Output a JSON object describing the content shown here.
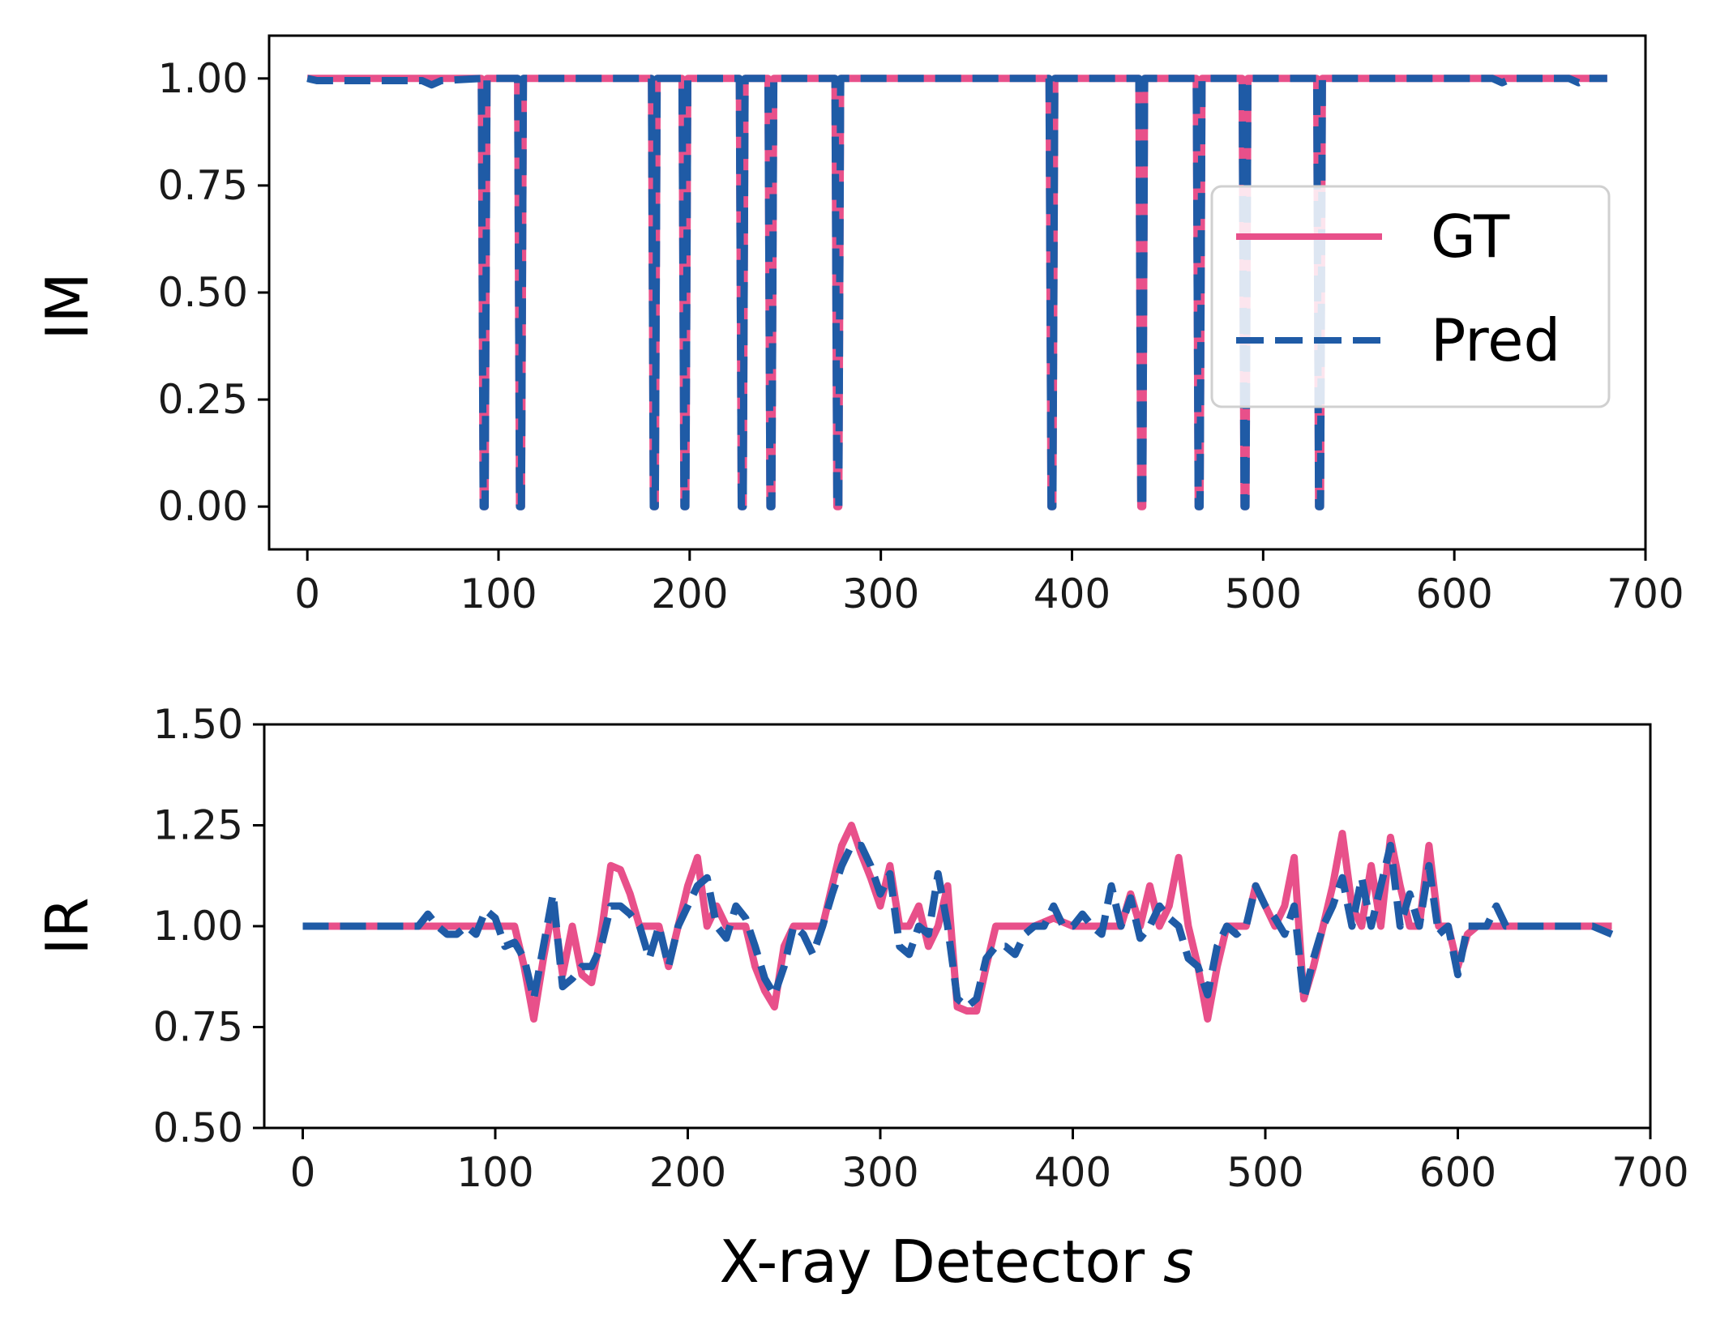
{
  "chart_data": [
    {
      "type": "line",
      "ylabel": "IM",
      "xlabel": "",
      "xlim": [
        -20,
        700
      ],
      "ylim": [
        -0.1,
        1.1
      ],
      "xticks": [
        0,
        100,
        200,
        300,
        400,
        500,
        600,
        700
      ],
      "yticks": [
        0.0,
        0.25,
        0.5,
        0.75,
        1.0
      ],
      "xtick_labels": [
        "0",
        "100",
        "200",
        "300",
        "400",
        "500",
        "600",
        "700"
      ],
      "ytick_labels": [
        "0.00",
        "0.25",
        "0.50",
        "0.75",
        "1.00"
      ],
      "legend": {
        "position": "right",
        "entries": [
          "GT",
          "Pred"
        ]
      },
      "grid": false,
      "series": [
        {
          "name": "GT",
          "color": "#e8508a",
          "style": "solid",
          "x": [
            0,
            91,
            92,
            93,
            94,
            110,
            111,
            112,
            113,
            180,
            181,
            182,
            183,
            196,
            197,
            198,
            199,
            226,
            227,
            228,
            229,
            241,
            242,
            243,
            244,
            276,
            277,
            278,
            279,
            388,
            389,
            390,
            391,
            435,
            436,
            437,
            438,
            465,
            466,
            467,
            468,
            489,
            490,
            491,
            492,
            528,
            529,
            530,
            531,
            680
          ],
          "y": [
            1,
            1,
            0,
            0,
            1,
            1,
            0,
            0,
            1,
            1,
            0,
            0,
            1,
            1,
            0,
            0,
            1,
            1,
            0,
            0,
            1,
            1,
            0,
            0,
            1,
            1,
            0,
            0,
            1,
            1,
            0,
            0,
            1,
            1,
            0,
            0,
            1,
            1,
            0,
            0,
            1,
            1,
            0,
            0,
            1,
            1,
            0,
            0,
            1,
            1
          ]
        },
        {
          "name": "Pred",
          "color": "#1f5ba6",
          "style": "dashed",
          "x": [
            0,
            5,
            10,
            60,
            65,
            70,
            91,
            92,
            93,
            94,
            110,
            111,
            112,
            113,
            180,
            181,
            182,
            183,
            196,
            197,
            198,
            199,
            226,
            227,
            228,
            229,
            241,
            242,
            243,
            244,
            276,
            277,
            278,
            279,
            388,
            389,
            390,
            391,
            435,
            436,
            437,
            438,
            465,
            466,
            467,
            468,
            489,
            490,
            491,
            492,
            528,
            529,
            530,
            531,
            620,
            625,
            630,
            660,
            665,
            670,
            680
          ],
          "y": [
            1,
            0.995,
            0.995,
            0.995,
            0.985,
            0.995,
            1,
            0,
            0,
            1,
            1,
            0,
            0,
            1,
            1,
            0,
            0,
            1,
            1,
            0,
            0,
            1,
            1,
            0,
            0,
            1,
            1,
            0,
            0,
            1,
            1,
            0,
            0,
            1,
            1,
            0,
            0,
            1,
            1,
            0,
            0,
            1,
            1,
            0,
            0,
            1,
            1,
            0,
            0,
            1,
            1,
            0,
            0,
            1,
            1,
            0.99,
            1,
            1,
            0.99,
            1,
            1
          ]
        }
      ]
    },
    {
      "type": "line",
      "ylabel": "IR",
      "xlabel": "X-ray Detector s",
      "xlim": [
        -20,
        700
      ],
      "ylim": [
        0.5,
        1.5
      ],
      "xticks": [
        0,
        100,
        200,
        300,
        400,
        500,
        600,
        700
      ],
      "yticks": [
        0.5,
        0.75,
        1.0,
        1.25,
        1.5
      ],
      "xtick_labels": [
        "0",
        "100",
        "200",
        "300",
        "400",
        "500",
        "600",
        "700"
      ],
      "ytick_labels": [
        "0.50",
        "0.75",
        "1.00",
        "1.25",
        "1.50"
      ],
      "grid": false,
      "series": [
        {
          "name": "GT",
          "color": "#e8508a",
          "style": "solid",
          "x": [
            0,
            95,
            100,
            110,
            115,
            120,
            125,
            130,
            135,
            140,
            145,
            150,
            155,
            160,
            165,
            170,
            175,
            180,
            185,
            190,
            195,
            200,
            205,
            210,
            215,
            220,
            225,
            230,
            235,
            240,
            245,
            250,
            255,
            260,
            265,
            270,
            275,
            280,
            285,
            290,
            295,
            300,
            305,
            310,
            315,
            320,
            325,
            330,
            335,
            340,
            345,
            350,
            355,
            360,
            370,
            380,
            390,
            400,
            410,
            420,
            425,
            430,
            435,
            440,
            445,
            450,
            455,
            460,
            465,
            470,
            475,
            480,
            485,
            490,
            495,
            500,
            505,
            510,
            515,
            520,
            525,
            530,
            535,
            540,
            545,
            550,
            555,
            560,
            565,
            570,
            575,
            580,
            585,
            590,
            595,
            600,
            605,
            610,
            620,
            630,
            680
          ],
          "y": [
            1.0,
            1.0,
            1.0,
            1.0,
            0.9,
            0.77,
            0.92,
            1.05,
            0.88,
            1.0,
            0.88,
            0.86,
            0.98,
            1.15,
            1.14,
            1.08,
            1.0,
            1.0,
            1.0,
            0.9,
            1.0,
            1.1,
            1.17,
            1.0,
            1.05,
            1.0,
            1.0,
            1.0,
            0.9,
            0.84,
            0.8,
            0.95,
            1.0,
            1.0,
            1.0,
            1.0,
            1.1,
            1.2,
            1.25,
            1.18,
            1.12,
            1.05,
            1.15,
            1.0,
            1.0,
            1.05,
            0.95,
            1.0,
            1.1,
            0.8,
            0.79,
            0.79,
            0.9,
            1.0,
            1.0,
            1.0,
            1.02,
            1.0,
            1.0,
            1.0,
            1.0,
            1.08,
            1.0,
            1.1,
            1.0,
            1.05,
            1.17,
            1.0,
            0.9,
            0.77,
            0.9,
            1.0,
            1.0,
            1.0,
            1.1,
            1.05,
            1.0,
            1.05,
            1.17,
            0.82,
            0.9,
            1.0,
            1.1,
            1.23,
            1.05,
            1.0,
            1.15,
            1.0,
            1.22,
            1.1,
            1.0,
            1.0,
            1.2,
            1.0,
            1.0,
            0.9,
            0.98,
            1.0,
            1.0,
            1.0,
            1.0
          ]
        },
        {
          "name": "Pred",
          "color": "#1f5ba6",
          "style": "dashed",
          "x": [
            0,
            60,
            65,
            70,
            75,
            80,
            85,
            90,
            95,
            100,
            105,
            110,
            115,
            120,
            125,
            130,
            135,
            140,
            145,
            150,
            155,
            160,
            165,
            170,
            175,
            180,
            185,
            190,
            195,
            200,
            205,
            210,
            215,
            220,
            225,
            230,
            235,
            240,
            245,
            250,
            255,
            260,
            265,
            270,
            275,
            280,
            285,
            290,
            295,
            300,
            305,
            310,
            315,
            320,
            325,
            330,
            335,
            340,
            345,
            350,
            355,
            360,
            365,
            370,
            375,
            380,
            385,
            390,
            395,
            400,
            405,
            410,
            415,
            420,
            425,
            430,
            435,
            440,
            445,
            450,
            455,
            460,
            465,
            470,
            475,
            480,
            485,
            490,
            495,
            500,
            505,
            510,
            515,
            520,
            525,
            530,
            535,
            540,
            545,
            550,
            555,
            560,
            565,
            570,
            575,
            580,
            585,
            590,
            595,
            600,
            605,
            610,
            615,
            620,
            625,
            630,
            640,
            670,
            680
          ],
          "y": [
            1.0,
            1.0,
            1.03,
            1.0,
            0.98,
            0.98,
            1.0,
            0.98,
            1.04,
            1.02,
            0.95,
            0.96,
            0.92,
            0.82,
            0.95,
            1.08,
            0.85,
            0.87,
            0.9,
            0.9,
            0.95,
            1.05,
            1.05,
            1.03,
            1.0,
            0.92,
            1.0,
            0.9,
            1.0,
            1.05,
            1.1,
            1.12,
            1.0,
            0.97,
            1.05,
            1.02,
            0.95,
            0.87,
            0.83,
            0.9,
            1.0,
            0.98,
            0.93,
            1.0,
            1.08,
            1.15,
            1.2,
            1.2,
            1.15,
            1.08,
            1.13,
            0.95,
            0.93,
            1.0,
            0.98,
            1.13,
            1.0,
            0.82,
            0.8,
            0.82,
            0.92,
            0.95,
            0.95,
            0.93,
            0.98,
            1.0,
            1.0,
            1.05,
            1.0,
            1.0,
            1.03,
            1.0,
            0.98,
            1.1,
            1.0,
            1.07,
            0.97,
            1.0,
            1.05,
            1.02,
            1.0,
            0.92,
            0.9,
            0.83,
            0.95,
            1.0,
            0.98,
            1.0,
            1.1,
            1.05,
            1.02,
            0.98,
            1.05,
            0.82,
            0.92,
            1.0,
            1.05,
            1.12,
            1.0,
            1.12,
            1.0,
            1.1,
            1.2,
            1.0,
            1.08,
            1.0,
            1.15,
            0.98,
            1.0,
            0.88,
            1.0,
            1.0,
            1.0,
            1.05,
            1.0,
            1.0,
            1.0,
            1.0,
            0.98
          ]
        }
      ]
    }
  ]
}
